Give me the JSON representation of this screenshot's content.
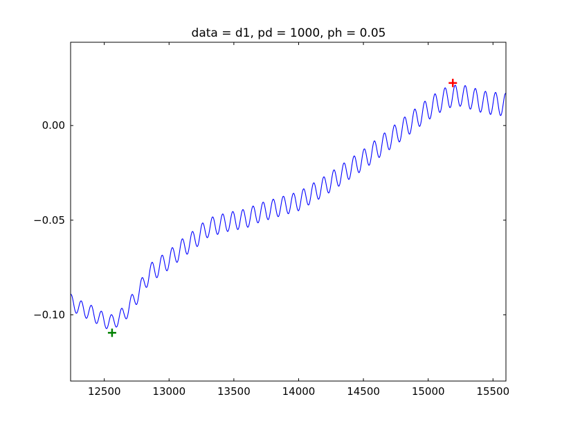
{
  "chart_data": {
    "type": "line",
    "title": "data = d1, pd = 1000, ph = 0.05",
    "xlabel": "",
    "ylabel": "",
    "xlim": [
      12240,
      15600
    ],
    "ylim": [
      -0.135,
      0.044
    ],
    "grid": false,
    "legend": "none",
    "x_ticks": [
      12500,
      13000,
      13500,
      14000,
      14500,
      15000,
      15500
    ],
    "x_tick_labels": [
      "12500",
      "13000",
      "13500",
      "14000",
      "14500",
      "15000",
      "15500"
    ],
    "y_ticks": [
      -0.1,
      -0.05,
      0.0
    ],
    "y_tick_labels": [
      "−0.10",
      "−0.05",
      "0.00"
    ],
    "series": [
      {
        "color": "#0000ff",
        "trend": {
          "x": [
            12240,
            12300,
            12400,
            12500,
            12560,
            12650,
            12750,
            12850,
            13000,
            13100,
            13200,
            13300,
            13450,
            13600,
            13700,
            13850,
            14000,
            14200,
            14350,
            14500,
            14650,
            14800,
            14950,
            15050,
            15150,
            15250,
            15350,
            15450,
            15600
          ],
          "y": [
            -0.093,
            -0.096,
            -0.099,
            -0.103,
            -0.104,
            -0.1,
            -0.09,
            -0.078,
            -0.071,
            -0.065,
            -0.06,
            -0.054,
            -0.051,
            -0.049,
            -0.046,
            -0.043,
            -0.04,
            -0.032,
            -0.025,
            -0.018,
            -0.01,
            -0.002,
            0.006,
            0.011,
            0.015,
            0.016,
            0.014,
            0.012,
            0.011
          ]
        },
        "oscillation": {
          "amplitude": [
            [
              12240,
              0.004
            ],
            [
              12600,
              0.004
            ],
            [
              12900,
              0.005
            ],
            [
              14000,
              0.005
            ],
            [
              15600,
              0.006
            ]
          ],
          "period": 78,
          "phase": 0.2
        }
      }
    ],
    "markers": [
      {
        "x": 12560,
        "y": -0.1095,
        "symbol": "+",
        "color": "#008000"
      },
      {
        "x": 15190,
        "y": 0.0225,
        "symbol": "+",
        "color": "#ff0000"
      }
    ]
  }
}
